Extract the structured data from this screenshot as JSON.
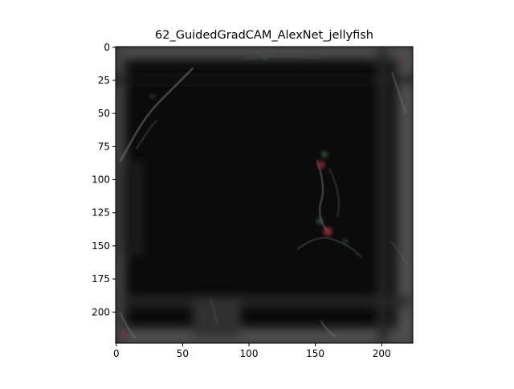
{
  "chart_data": {
    "type": "heatmap",
    "title": "62_GuidedGradCAM_AlexNet_jellyfish",
    "xlabel": "",
    "ylabel": "",
    "image_size": [
      224,
      224
    ],
    "xlim": [
      -0.5,
      223.5
    ],
    "ylim": [
      223.5,
      -0.5
    ],
    "y_inverted": true,
    "xticks": [
      0,
      50,
      100,
      150,
      200
    ],
    "yticks": [
      0,
      25,
      50,
      75,
      100,
      125,
      150,
      175,
      200
    ],
    "grid": false,
    "colors": {
      "background": "#0b0b0b",
      "frame_glow": "#7a7a7a",
      "edge_highlight": "#9a9a9a",
      "accent_red": "#8a2a3a",
      "accent_green": "#3d6b4a"
    }
  }
}
